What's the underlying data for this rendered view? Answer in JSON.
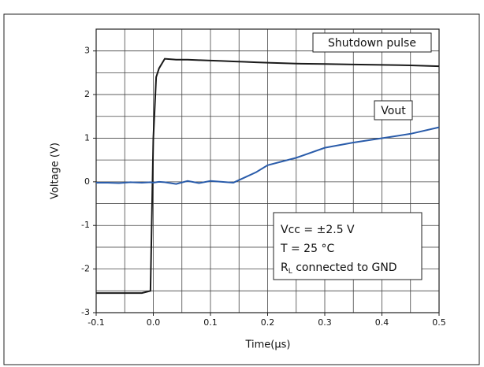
{
  "chart_data": {
    "type": "line",
    "x_label": "Time(µs)",
    "y_label": "Voltage (V)",
    "x": [
      -0.1,
      -0.08,
      -0.06,
      -0.04,
      -0.02,
      -0.005,
      0,
      0.005,
      0.01,
      0.02,
      0.04,
      0.06,
      0.08,
      0.1,
      0.12,
      0.14,
      0.16,
      0.18,
      0.2,
      0.25,
      0.3,
      0.35,
      0.4,
      0.45,
      0.5
    ],
    "series": [
      {
        "name": "Shutdown pulse",
        "color": "#1a1a1a",
        "values": [
          -2.55,
          -2.55,
          -2.55,
          -2.55,
          -2.55,
          -2.5,
          1.0,
          2.4,
          2.6,
          2.82,
          2.8,
          2.8,
          2.79,
          2.78,
          2.77,
          2.76,
          2.75,
          2.74,
          2.73,
          2.71,
          2.7,
          2.69,
          2.68,
          2.67,
          2.65
        ]
      },
      {
        "name": "Vout",
        "color": "#2a5caa",
        "values": [
          -0.02,
          -0.02,
          -0.03,
          -0.01,
          -0.02,
          -0.01,
          -0.02,
          -0.01,
          0,
          -0.01,
          -0.05,
          0.02,
          -0.03,
          0.02,
          0,
          -0.02,
          0.1,
          0.22,
          0.38,
          0.55,
          0.78,
          0.9,
          1.0,
          1.1,
          1.25
        ]
      }
    ],
    "xlim": [
      -0.1,
      0.5
    ],
    "ylim": [
      -3,
      3.5
    ],
    "xticks": [
      -0.1,
      {
        "value": 0,
        "label": "0.0"
      },
      0.1,
      0.2,
      0.3,
      0.4,
      0.5
    ],
    "yticks": [
      -3,
      -2,
      -1,
      0,
      1,
      2,
      3
    ],
    "x_grid_lines": [
      -0.1,
      -0.05,
      0,
      0.05,
      0.1,
      0.15,
      0.2,
      0.25,
      0.3,
      0.35,
      0.4,
      0.45,
      0.5
    ],
    "y_grid_lines": [
      -3,
      -2.5,
      -2,
      -1.5,
      -1,
      -0.5,
      0,
      0.5,
      1,
      1.5,
      2,
      2.5,
      3,
      3.5
    ],
    "grid": true,
    "conditions": [
      "Vcc = ±2.5 V",
      "T = 25 °C"
    ],
    "load_note": {
      "symbol": "R",
      "subscript": "L",
      "text": " connected to GND"
    }
  }
}
